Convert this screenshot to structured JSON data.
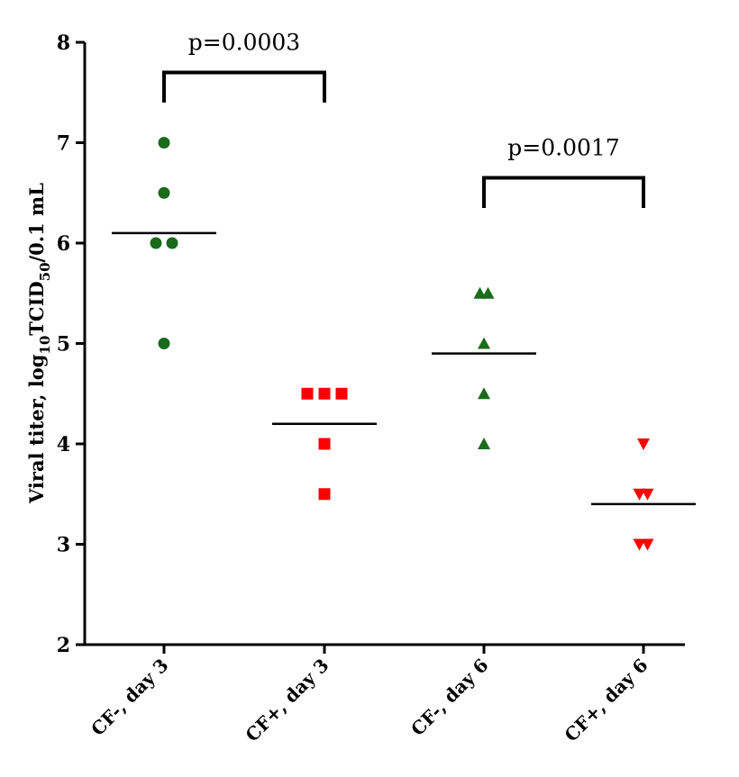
{
  "chart_data": {
    "type": "scatter",
    "title": "",
    "ylabel": {
      "main": "Viral titer, log",
      "sub1": "10",
      "mid": "TCID",
      "sub2": "50",
      "tail": "/0.1 mL"
    },
    "ylim": [
      2,
      8
    ],
    "yticks": [
      2,
      3,
      4,
      5,
      6,
      7,
      8
    ],
    "categories": [
      "CF-, day 3",
      "CF+, day 3",
      "CF-, day 6",
      "CF+, day 6"
    ],
    "series": [
      {
        "name": "CF-, day 3",
        "color": "#1a6b1a",
        "marker": "circle",
        "points": [
          {
            "jitter": 0,
            "y": 7.0
          },
          {
            "jitter": 0,
            "y": 6.5
          },
          {
            "jitter": -1,
            "y": 6.0
          },
          {
            "jitter": 1,
            "y": 6.0
          },
          {
            "jitter": 0,
            "y": 5.0
          }
        ],
        "mean": 6.1
      },
      {
        "name": "CF+, day 3",
        "color": "#ff0000",
        "marker": "square",
        "points": [
          {
            "jitter": -1,
            "y": 4.5
          },
          {
            "jitter": 0,
            "y": 4.5
          },
          {
            "jitter": 1,
            "y": 4.5
          },
          {
            "jitter": 0,
            "y": 4.0
          },
          {
            "jitter": 0,
            "y": 3.5
          }
        ],
        "mean": 4.2
      },
      {
        "name": "CF-, day 6",
        "color": "#1a6b1a",
        "marker": "triangle-up",
        "points": [
          {
            "jitter": -0.5,
            "y": 5.5
          },
          {
            "jitter": 0.5,
            "y": 5.5
          },
          {
            "jitter": 0,
            "y": 5.0
          },
          {
            "jitter": 0,
            "y": 4.5
          },
          {
            "jitter": 0,
            "y": 4.0
          }
        ],
        "mean": 4.9
      },
      {
        "name": "CF+, day 6",
        "color": "#ff0000",
        "marker": "triangle-down",
        "points": [
          {
            "jitter": 0,
            "y": 4.0
          },
          {
            "jitter": -0.5,
            "y": 3.5
          },
          {
            "jitter": 0.5,
            "y": 3.5
          },
          {
            "jitter": -0.5,
            "y": 3.0
          },
          {
            "jitter": 0.5,
            "y": 3.0
          }
        ],
        "mean": 3.4
      }
    ],
    "annotations": [
      {
        "text": "p=0.0003",
        "from": 0,
        "to": 1,
        "y_top": 7.7,
        "y_bottom": 7.4
      },
      {
        "text": "p=0.0017",
        "from": 2,
        "to": 3,
        "y_top": 6.65,
        "y_bottom": 6.35
      }
    ]
  }
}
